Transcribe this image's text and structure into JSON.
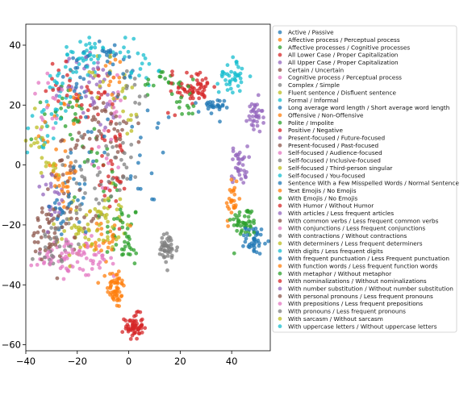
{
  "chart_data": {
    "type": "scatter",
    "title": "",
    "xlabel": "",
    "ylabel": "",
    "xlim": [
      -40,
      55
    ],
    "ylim": [
      -62,
      47
    ],
    "xticks": [
      -40,
      -20,
      0,
      20,
      40
    ],
    "yticks": [
      -60,
      -40,
      -20,
      0,
      20,
      40
    ],
    "grid": false,
    "legend_position": "outside-right",
    "point_alpha": 0.75,
    "series": [
      {
        "name": "Active / Passive",
        "color": "#1f77b4",
        "clusters": [
          [
            -27,
            -16,
            2.8,
            4.2,
            18
          ],
          [
            -20,
            27,
            3,
            6,
            14
          ],
          [
            8,
            3,
            5,
            9,
            16
          ]
        ]
      },
      {
        "name": "Affective process / Perceptual process",
        "color": "#ff7f0e",
        "clusters": [
          [
            -5,
            -41,
            1.7,
            3.5,
            55
          ],
          [
            40,
            -12,
            1.3,
            4.8,
            26
          ],
          [
            -24,
            -8,
            3,
            5,
            12
          ]
        ]
      },
      {
        "name": "Affective processes / Cognitive processes",
        "color": "#2ca02c",
        "clusters": [
          [
            45,
            -19,
            2.6,
            2.5,
            45
          ],
          [
            -3,
            -22,
            3.5,
            5,
            18
          ],
          [
            12,
            28,
            3,
            2,
            14
          ]
        ]
      },
      {
        "name": "All Lower Case / Proper Capitalization",
        "color": "#d62728",
        "clusters": [
          [
            2,
            -54,
            1.8,
            2.1,
            60
          ],
          [
            27,
            26,
            3,
            2.4,
            45
          ],
          [
            -8,
            9,
            3,
            8,
            12
          ]
        ]
      },
      {
        "name": "All Upper Case / Proper Capitalization",
        "color": "#9467bd",
        "clusters": [
          [
            43,
            0,
            1.6,
            3.2,
            35
          ],
          [
            -12,
            22,
            3,
            6,
            12
          ]
        ]
      },
      {
        "name": "Certain / Uncertain",
        "color": "#8c564b",
        "clusters": [
          [
            -31,
            -22,
            3.5,
            5.5,
            30
          ],
          [
            -18,
            10,
            4,
            5,
            14
          ]
        ]
      },
      {
        "name": "Cognitive process / Perceptual process",
        "color": "#e377c2",
        "clusters": [
          [
            -22,
            -30,
            3.5,
            3.2,
            26
          ],
          [
            -30,
            20,
            4,
            5,
            14
          ]
        ]
      },
      {
        "name": "Complex / Simple",
        "color": "#7f7f7f",
        "clusters": [
          [
            15,
            -28,
            2,
            2.6,
            45
          ],
          [
            -12,
            -10,
            4,
            6,
            12
          ]
        ]
      },
      {
        "name": "Fluent sentence / Disfluent sentence",
        "color": "#bcbd22",
        "clusters": [
          [
            -15,
            -20,
            4,
            4.5,
            26
          ],
          [
            -10,
            28,
            4,
            4,
            14
          ]
        ]
      },
      {
        "name": "Formal / Informal",
        "color": "#17becf",
        "clusters": [
          [
            40,
            30,
            2.4,
            3,
            40
          ],
          [
            -19,
            35,
            4,
            4,
            14
          ],
          [
            0,
            38,
            3,
            4,
            10
          ]
        ]
      },
      {
        "name": "Long average word length / Short average word length",
        "color": "#1f77b4",
        "clusters": [
          [
            49,
            -25,
            1.8,
            2.4,
            40
          ],
          [
            32,
            19,
            2.5,
            1.5,
            28
          ]
        ]
      },
      {
        "name": "Offensive / Non-Offensive",
        "color": "#ff7f0e",
        "clusters": [
          [
            -6,
            30,
            3,
            5,
            14
          ],
          [
            -25,
            -5,
            4,
            6,
            12
          ]
        ]
      },
      {
        "name": "Polite / Impolite",
        "color": "#2ca02c",
        "clusters": [
          [
            22,
            22,
            4,
            3,
            18
          ],
          [
            -14,
            4,
            4,
            7,
            14
          ]
        ]
      },
      {
        "name": "Positive / Negative",
        "color": "#d62728",
        "clusters": [
          [
            -13,
            24,
            3,
            5,
            16
          ],
          [
            20,
            24,
            3,
            3,
            14
          ]
        ]
      },
      {
        "name": "Present-focused / Future-focused",
        "color": "#9467bd",
        "clusters": [
          [
            49,
            16,
            1.5,
            3,
            35
          ],
          [
            -9,
            18,
            3,
            5,
            12
          ]
        ]
      },
      {
        "name": "Present-focused / Past-focused",
        "color": "#8c564b",
        "clusters": [
          [
            -26,
            0,
            4,
            8,
            14
          ],
          [
            -5,
            12,
            3,
            6,
            10
          ]
        ]
      },
      {
        "name": "Self-focused / Audience-focused",
        "color": "#e377c2",
        "clusters": [
          [
            -25,
            -32,
            3,
            3,
            18
          ],
          [
            -9,
            -32,
            2.5,
            2.5,
            12
          ]
        ]
      },
      {
        "name": "Self-focused / Inclusive-focused",
        "color": "#7f7f7f",
        "clusters": [
          [
            -30,
            -28,
            3,
            3.5,
            16
          ],
          [
            -3,
            -4,
            3,
            6,
            12
          ]
        ]
      },
      {
        "name": "Self-focused / Third-person singular",
        "color": "#bcbd22",
        "clusters": [
          [
            -20,
            -25,
            4,
            4,
            16
          ],
          [
            -1,
            19,
            3,
            5,
            12
          ]
        ]
      },
      {
        "name": "Self-focused / You-focused",
        "color": "#17becf",
        "clusters": [
          [
            -33,
            12,
            3.5,
            5,
            16
          ],
          [
            5,
            32,
            3,
            3,
            12
          ]
        ]
      },
      {
        "name": "Sentence With a Few Misspelled Words / Normal Sentence",
        "color": "#1f77b4",
        "clusters": [
          [
            -8,
            37,
            3,
            3,
            16
          ],
          [
            -21,
            -13,
            3,
            5,
            12
          ]
        ]
      },
      {
        "name": "Text Emojis / No Emojis",
        "color": "#ff7f0e",
        "clusters": [
          [
            -10,
            -25,
            3,
            4,
            14
          ],
          [
            -29,
            4,
            3,
            5,
            10
          ]
        ]
      },
      {
        "name": "With Emojis / No Emojis",
        "color": "#2ca02c",
        "clusters": [
          [
            -1,
            -28,
            3,
            3,
            18
          ],
          [
            -22,
            15,
            3,
            5,
            12
          ]
        ]
      },
      {
        "name": "With Humor / Without Humor",
        "color": "#d62728",
        "clusters": [
          [
            -5,
            2,
            3,
            6,
            14
          ],
          [
            -20,
            22,
            3,
            4,
            10
          ]
        ]
      },
      {
        "name": "With articles / Less frequent articles",
        "color": "#9467bd",
        "clusters": [
          [
            -23,
            29,
            4,
            5,
            14
          ],
          [
            -30,
            -10,
            3,
            4,
            10
          ]
        ]
      },
      {
        "name": "With common verbs / Less frequent common verbs",
        "color": "#8c564b",
        "clusters": [
          [
            -32,
            -23,
            3,
            4,
            14
          ],
          [
            -12,
            14,
            3,
            4,
            10
          ]
        ]
      },
      {
        "name": "With conjunctions / Less frequent conjunctions",
        "color": "#e377c2",
        "clusters": [
          [
            -15,
            -31,
            3,
            3,
            14
          ],
          [
            -6,
            24,
            3,
            5,
            10
          ]
        ]
      },
      {
        "name": "With contractions / Without contractions",
        "color": "#7f7f7f",
        "clusters": [
          [
            -26,
            -22,
            4,
            4,
            14
          ],
          [
            -2,
            6,
            3,
            5,
            10
          ]
        ]
      },
      {
        "name": "With determiners / Less frequent determiners",
        "color": "#bcbd22",
        "clusters": [
          [
            -35,
            8,
            2.5,
            5,
            14
          ],
          [
            -11,
            -16,
            3,
            5,
            12
          ]
        ]
      },
      {
        "name": "With digits / Less frequent digits",
        "color": "#17becf",
        "clusters": [
          [
            -17,
            37,
            4,
            3,
            14
          ],
          [
            -28,
            27,
            3,
            4,
            10
          ]
        ]
      },
      {
        "name": "With frequent punctuation / Less Frequent punctuation",
        "color": "#1f77b4",
        "clusters": [
          [
            -16,
            6,
            4,
            6,
            12
          ],
          [
            -2,
            31,
            3,
            4,
            10
          ]
        ]
      },
      {
        "name": "With function words / Less frequent function words",
        "color": "#ff7f0e",
        "clusters": [
          [
            -9,
            -22,
            3,
            4,
            12
          ],
          [
            -24,
            23,
            4,
            4,
            10
          ]
        ]
      },
      {
        "name": "With metaphor / Without metaphor",
        "color": "#2ca02c",
        "clusters": [
          [
            -25,
            17,
            4,
            4,
            12
          ],
          [
            -3,
            -12,
            3,
            5,
            10
          ]
        ]
      },
      {
        "name": "With nominalizations / Without nominalizations",
        "color": "#d62728",
        "clusters": [
          [
            -6,
            -8,
            3,
            5,
            12
          ],
          [
            -27,
            32,
            3,
            3,
            10
          ]
        ]
      },
      {
        "name": "With number substitution / Without number substitution",
        "color": "#9467bd",
        "clusters": [
          [
            -29,
            -15,
            3,
            4,
            12
          ],
          [
            -15,
            32,
            3,
            3,
            10
          ]
        ]
      },
      {
        "name": "With personal pronouns / Less frequent pronouns",
        "color": "#8c564b",
        "clusters": [
          [
            -20,
            -18,
            4,
            4,
            12
          ],
          [
            -3,
            14,
            3,
            5,
            10
          ]
        ]
      },
      {
        "name": "With prepositions / Less frequent prepositions",
        "color": "#e377c2",
        "clusters": [
          [
            -33,
            -30,
            2.5,
            3,
            12
          ],
          [
            -10,
            0,
            3,
            5,
            10
          ]
        ]
      },
      {
        "name": "With pronouns / Less frequent pronouns",
        "color": "#7f7f7f",
        "clusters": [
          [
            -19,
            -3,
            3,
            5,
            12
          ],
          [
            3,
            24,
            3,
            4,
            10
          ]
        ]
      },
      {
        "name": "With sarcasm / Without sarcasm",
        "color": "#bcbd22",
        "clusters": [
          [
            -5,
            -18,
            3,
            4,
            12
          ],
          [
            -31,
            -2,
            3,
            5,
            10
          ]
        ]
      },
      {
        "name": "With uppercase letters / Without uppercase letters",
        "color": "#17becf",
        "clusters": [
          [
            -28,
            20,
            3,
            4,
            12
          ],
          [
            -12,
            38,
            3,
            3,
            12
          ]
        ]
      }
    ]
  }
}
